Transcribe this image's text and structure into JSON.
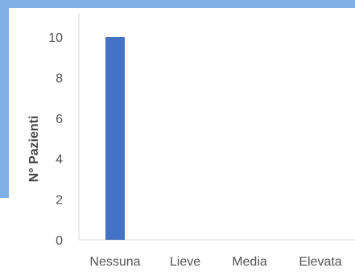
{
  "chart_data": {
    "type": "bar",
    "title": "",
    "xlabel": "",
    "ylabel": "N° Pazienti",
    "categories": [
      "Nessuna",
      "Lieve",
      "Media",
      "Elevata"
    ],
    "values": [
      10,
      0,
      0,
      0
    ],
    "ylim": [
      0,
      10
    ],
    "yticks": [
      0,
      2,
      4,
      6,
      8,
      10
    ],
    "grid": false,
    "legend": "none",
    "colors": {
      "bar": "#4472c4",
      "axis": "#d9d9d9",
      "text": "#555555"
    }
  }
}
